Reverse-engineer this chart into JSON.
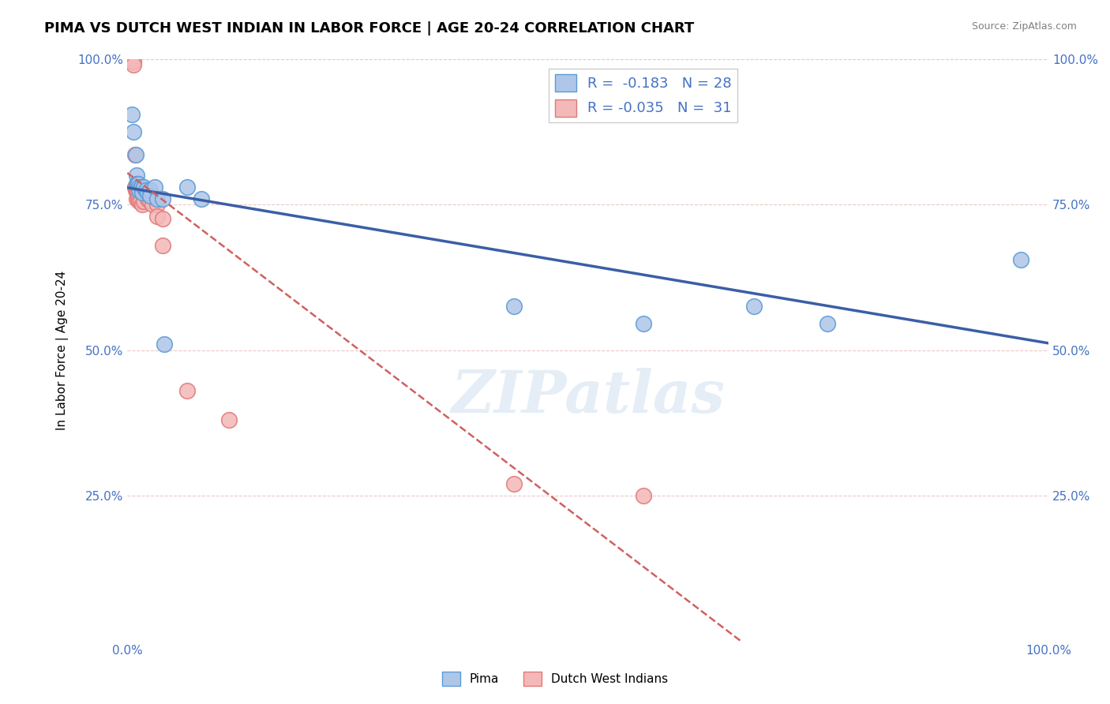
{
  "title": "PIMA VS DUTCH WEST INDIAN IN LABOR FORCE | AGE 20-24 CORRELATION CHART",
  "source_text": "Source: ZipAtlas.com",
  "ylabel": "In Labor Force | Age 20-24",
  "xlim": [
    0.0,
    1.0
  ],
  "ylim": [
    0.0,
    1.0
  ],
  "ytick_positions": [
    0.25,
    0.5,
    0.75,
    1.0
  ],
  "ytick_labels": [
    "25.0%",
    "50.0%",
    "75.0%",
    "100.0%"
  ],
  "pima_color": "#aec6e8",
  "pima_edge_color": "#5b9bd5",
  "dutch_color": "#f4b8b8",
  "dutch_edge_color": "#e07878",
  "trend_pima_color": "#3b5ea6",
  "trend_dutch_color": "#d06060",
  "pima_r": -0.183,
  "pima_n": 28,
  "dutch_r": -0.035,
  "dutch_n": 31,
  "legend_label_pima": "Pima",
  "legend_label_dutch": "Dutch West Indians",
  "watermark": "ZIPatlas",
  "pima_x": [
    0.005,
    0.007,
    0.009,
    0.01,
    0.01,
    0.011,
    0.012,
    0.013,
    0.013,
    0.015,
    0.016,
    0.016,
    0.018,
    0.02,
    0.022,
    0.025,
    0.025,
    0.03,
    0.032,
    0.038,
    0.04,
    0.065,
    0.08,
    0.42,
    0.56,
    0.68,
    0.76,
    0.97
  ],
  "pima_y": [
    0.905,
    0.875,
    0.835,
    0.8,
    0.785,
    0.785,
    0.785,
    0.78,
    0.775,
    0.78,
    0.775,
    0.77,
    0.78,
    0.775,
    0.77,
    0.775,
    0.765,
    0.78,
    0.76,
    0.76,
    0.51,
    0.78,
    0.76,
    0.575,
    0.545,
    0.575,
    0.545,
    0.655
  ],
  "dutch_x": [
    0.004,
    0.005,
    0.006,
    0.007,
    0.007,
    0.008,
    0.008,
    0.009,
    0.01,
    0.01,
    0.011,
    0.011,
    0.012,
    0.012,
    0.013,
    0.014,
    0.016,
    0.018,
    0.02,
    0.021,
    0.022,
    0.025,
    0.027,
    0.032,
    0.032,
    0.038,
    0.038,
    0.065,
    0.11,
    0.42,
    0.56
  ],
  "dutch_y": [
    1.0,
    1.0,
    0.995,
    0.995,
    0.99,
    0.835,
    0.78,
    0.775,
    0.775,
    0.76,
    0.775,
    0.77,
    0.765,
    0.76,
    0.755,
    0.755,
    0.75,
    0.755,
    0.77,
    0.77,
    0.76,
    0.755,
    0.75,
    0.75,
    0.73,
    0.725,
    0.68,
    0.43,
    0.38,
    0.27,
    0.25
  ]
}
